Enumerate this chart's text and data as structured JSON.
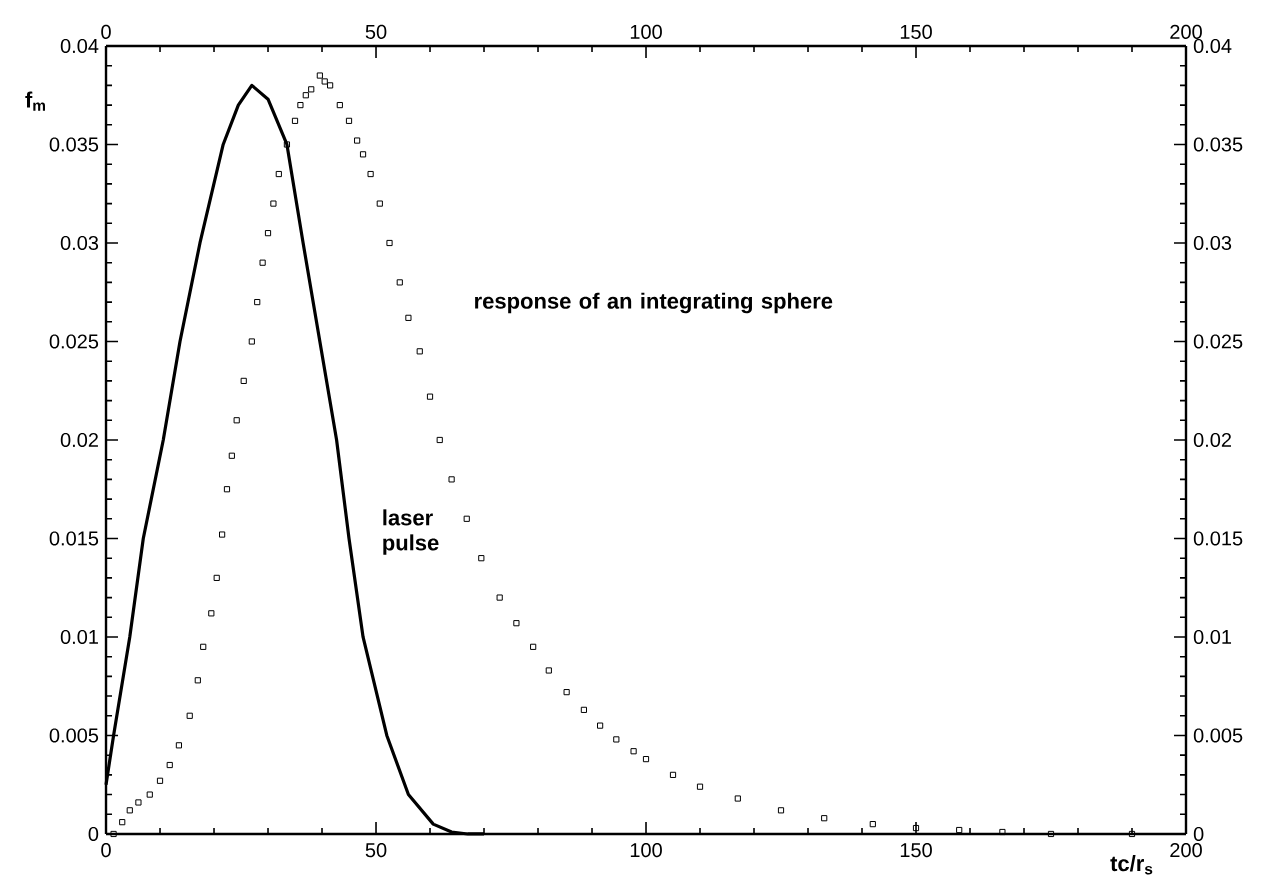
{
  "chart_data": {
    "type": "line",
    "xlabel": "tc/r$_{s}$",
    "ylabel": "f$_{m}$",
    "legend": false,
    "xlim": [
      0,
      200
    ],
    "xticks": [
      0,
      50,
      100,
      150,
      200
    ],
    "x2lim": [
      0,
      200
    ],
    "x2ticks": [
      0,
      50,
      100,
      150,
      200
    ],
    "ylim": [
      0,
      0.04
    ],
    "yticks": [
      0,
      0.005,
      0.01,
      0.015,
      0.02,
      0.025,
      0.03,
      0.035,
      0.04
    ],
    "y2lim": [
      0,
      0.04
    ],
    "y2ticks": [
      0,
      0.005,
      0.01,
      0.015,
      0.02,
      0.025,
      0.03,
      0.035,
      0.04
    ],
    "series": [
      {
        "name": "laser pulse",
        "color": "#000000",
        "marker": "none",
        "line_style": "solid",
        "x": [
          0,
          1.4,
          4.4,
          6.9,
          10.6,
          13.7,
          17.4,
          21.7,
          24.5,
          27,
          30,
          33.5,
          36.5,
          39.6,
          42.7,
          45,
          47.6,
          52,
          56,
          60.6,
          64,
          67,
          70
        ],
        "values": [
          0.0025,
          0.005,
          0.01,
          0.015,
          0.02,
          0.025,
          0.03,
          0.035,
          0.037,
          0.038,
          0.0373,
          0.035,
          0.03,
          0.025,
          0.02,
          0.015,
          0.01,
          0.005,
          0.002,
          0.0005,
          0.0001,
          0,
          0
        ]
      },
      {
        "name": "response of an integrating sphere",
        "type": "scatter",
        "color": "#000000",
        "marker": "square",
        "x": [
          1.4,
          3,
          4.4,
          6,
          8.1,
          10,
          11.8,
          13.5,
          15.5,
          17,
          18,
          19.5,
          20.5,
          21.5,
          22.4,
          23.3,
          24.2,
          25.5,
          27,
          28,
          29,
          30,
          31,
          32,
          33.5,
          35,
          36,
          37,
          38,
          39.6,
          40.5,
          41.5,
          43.3,
          45,
          46.5,
          47.6,
          49,
          50.7,
          52.5,
          54.4,
          56,
          58.1,
          60,
          61.8,
          64,
          66.8,
          69.5,
          72.9,
          76,
          79.1,
          82,
          85.3,
          88.5,
          91.5,
          94.5,
          97.7,
          100,
          105,
          110,
          117,
          125,
          133,
          142,
          150,
          158,
          166,
          175,
          190
        ],
        "values": [
          0,
          0.0006,
          0.0012,
          0.0016,
          0.002,
          0.0027,
          0.0035,
          0.0045,
          0.006,
          0.0078,
          0.0095,
          0.0112,
          0.013,
          0.0152,
          0.0175,
          0.0192,
          0.021,
          0.023,
          0.025,
          0.027,
          0.029,
          0.0305,
          0.032,
          0.0335,
          0.035,
          0.0362,
          0.037,
          0.0375,
          0.0378,
          0.0385,
          0.0382,
          0.038,
          0.037,
          0.0362,
          0.0352,
          0.0345,
          0.0335,
          0.032,
          0.03,
          0.028,
          0.0262,
          0.0245,
          0.0222,
          0.02,
          0.018,
          0.016,
          0.014,
          0.012,
          0.0107,
          0.0095,
          0.0083,
          0.0072,
          0.0063,
          0.0055,
          0.0048,
          0.0042,
          0.0038,
          0.003,
          0.0024,
          0.0018,
          0.0012,
          0.0008,
          0.0005,
          0.0003,
          0.0002,
          0.0001,
          0,
          0
        ]
      }
    ]
  }
}
